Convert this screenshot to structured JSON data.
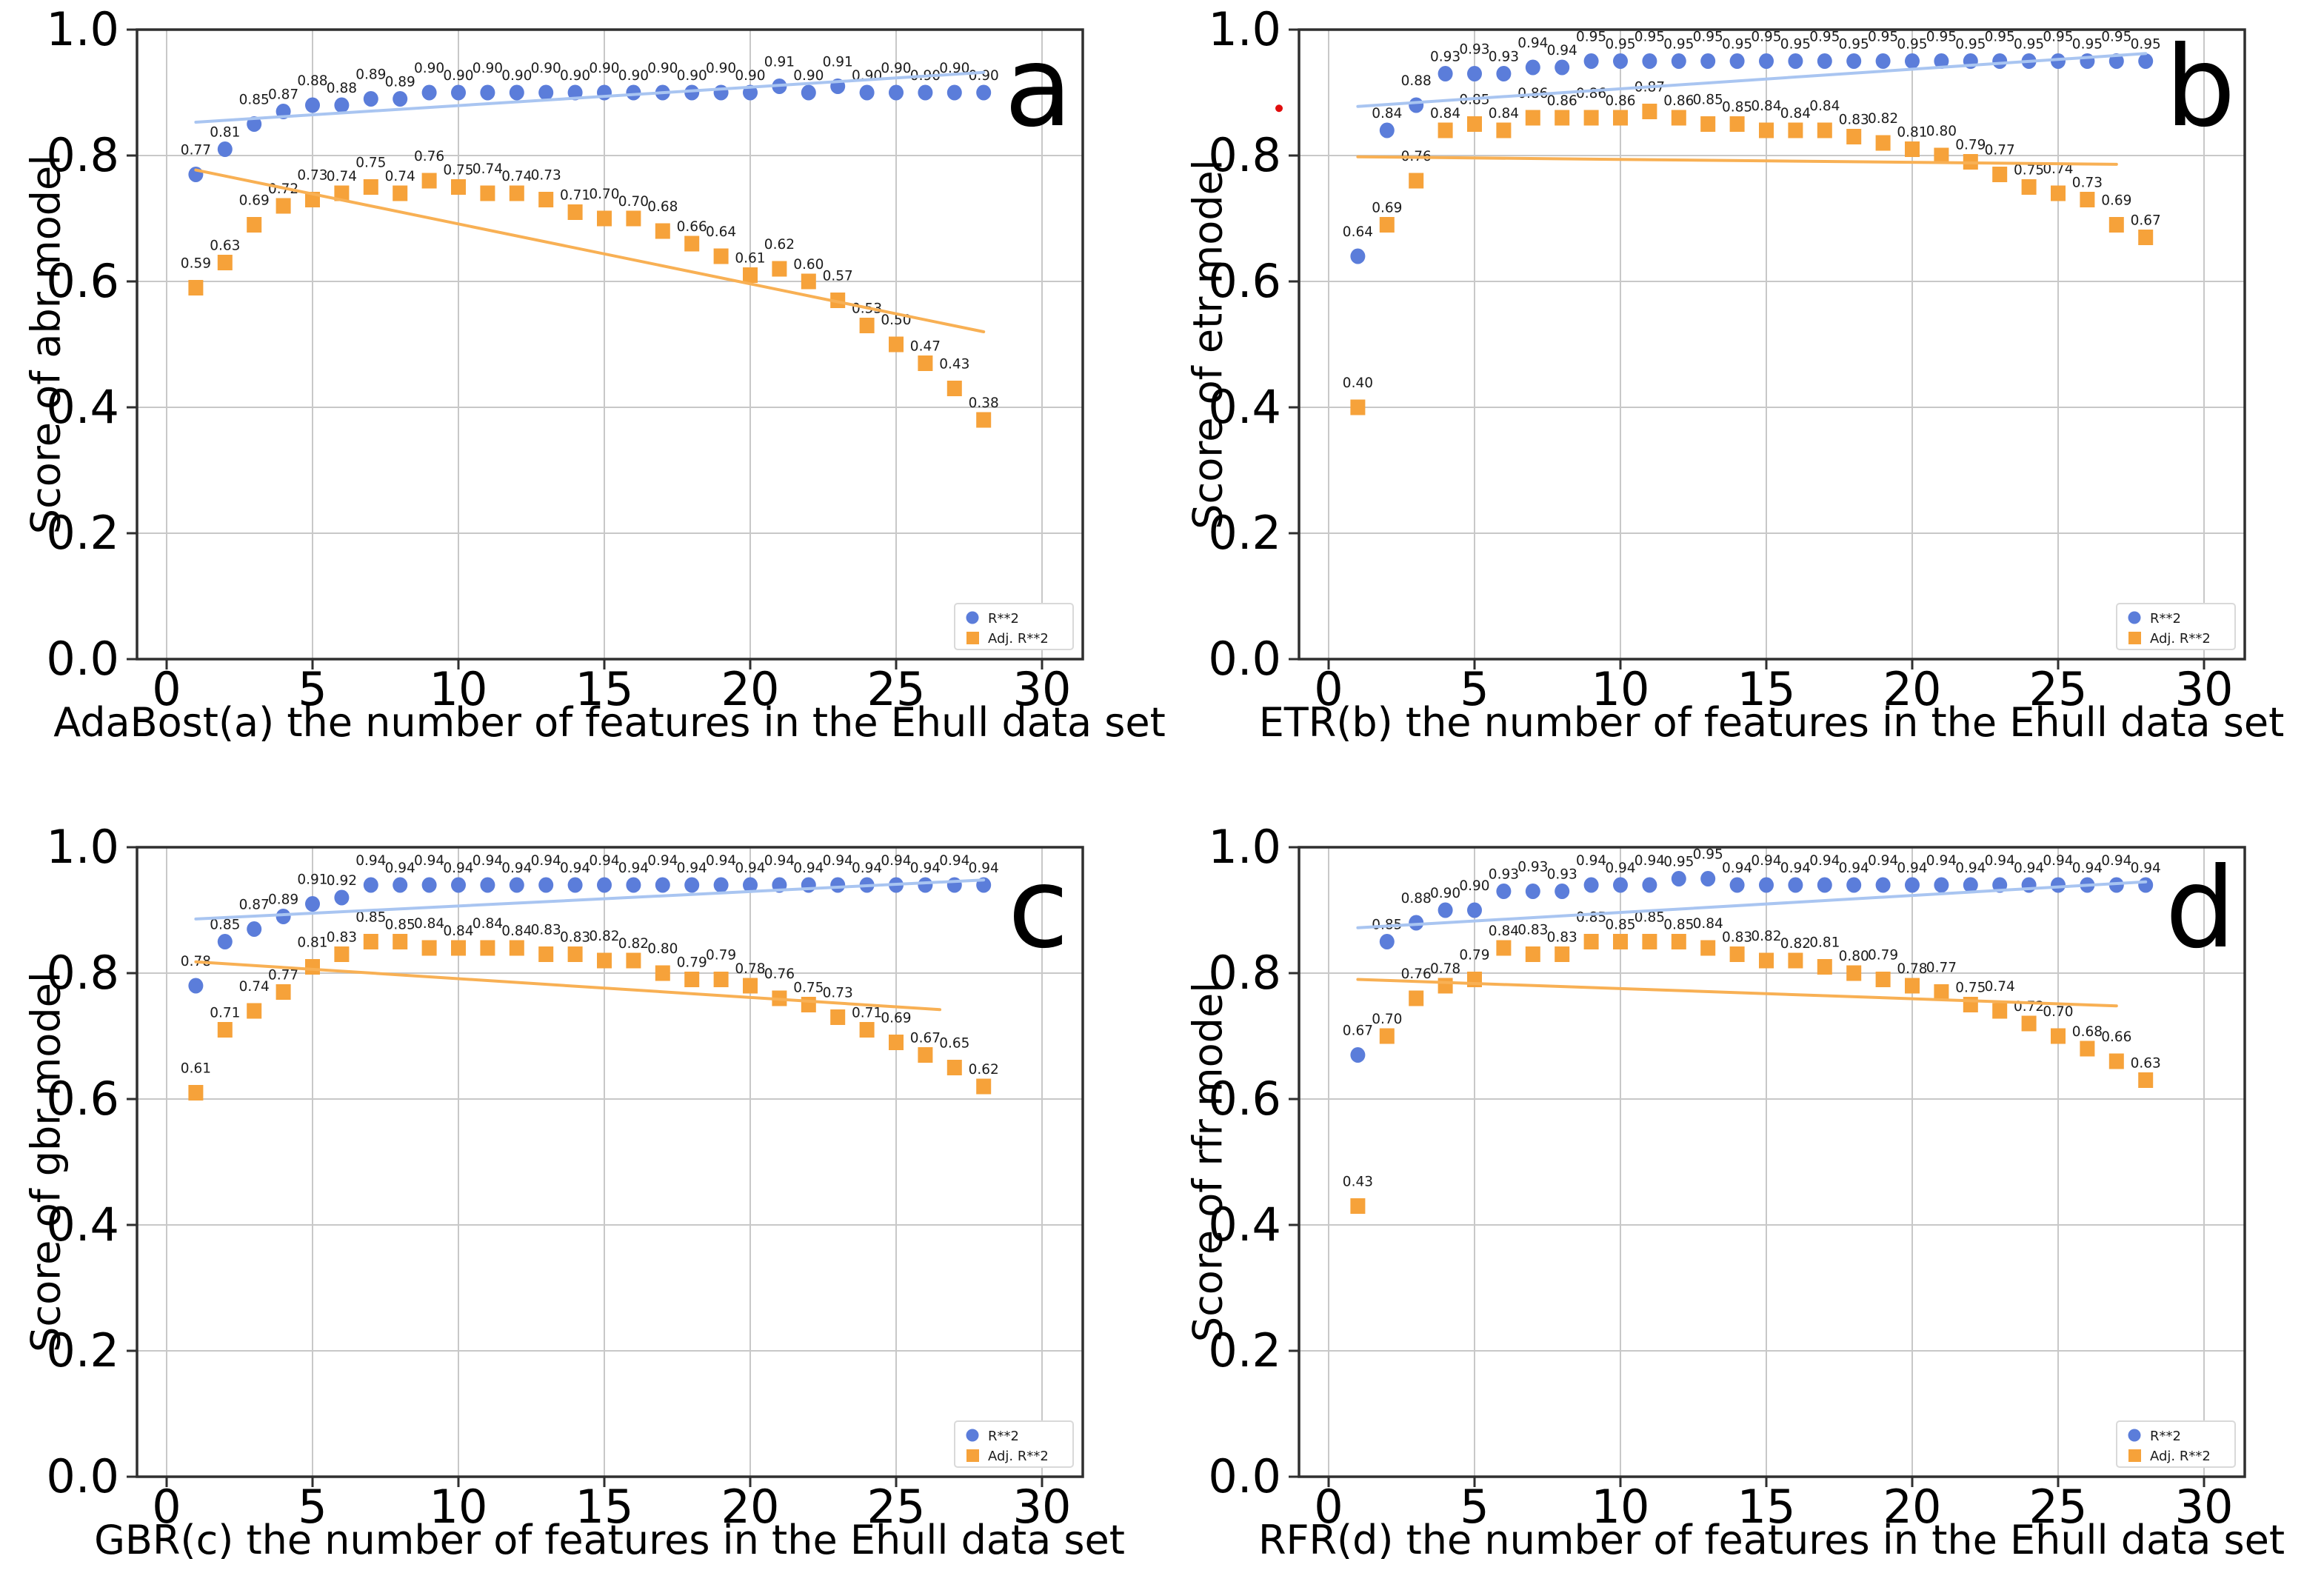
{
  "figure": {
    "x_ticks": [
      0,
      5,
      10,
      15,
      20,
      25,
      30
    ],
    "y_ticks": [
      0.0,
      0.2,
      0.4,
      0.6,
      0.8,
      1.0
    ],
    "legend": {
      "items": [
        {
          "label": "R**2",
          "marker": "circle"
        },
        {
          "label": "Adj. R**2",
          "marker": "square"
        }
      ]
    },
    "colors": {
      "r2_marker": "#5b7dda",
      "adj_r2_marker": "#f6a23a",
      "r2_trend": "#a9c5f1",
      "adj_r2_trend": "#f8b054",
      "grid": "#c8c8c8",
      "frame": "#2f2f2f",
      "value_label": "#1c1c1c",
      "tick_label": "#000000",
      "legend_border": "#d9d9d9",
      "stray_point": "#e00d0d"
    }
  },
  "x_values": [
    1,
    2,
    3,
    4,
    5,
    6,
    7,
    8,
    9,
    10,
    11,
    12,
    13,
    14,
    15,
    16,
    17,
    18,
    19,
    20,
    21,
    22,
    23,
    24,
    25,
    26,
    27,
    28
  ],
  "chart_data": [
    {
      "type": "scatter",
      "panel": "a",
      "model": "abr",
      "xlabel": "AdaBost(a) the number of features in the Ehull data set",
      "ylabel": "Score of abr model",
      "xlim": [
        0,
        30
      ],
      "ylim": [
        0.0,
        1.0
      ],
      "grid": true,
      "legend_position": "lower right",
      "series": [
        {
          "name": "R**2",
          "values": [
            0.77,
            0.81,
            0.85,
            0.87,
            0.88,
            0.88,
            0.89,
            0.89,
            0.9,
            0.9,
            0.9,
            0.9,
            0.9,
            0.9,
            0.9,
            0.9,
            0.9,
            0.9,
            0.9,
            0.9,
            0.91,
            0.9,
            0.91,
            0.9,
            0.9,
            0.9,
            0.9,
            0.9
          ]
        },
        {
          "name": "Adj. R**2",
          "values": [
            0.59,
            0.63,
            0.69,
            0.72,
            0.73,
            0.74,
            0.75,
            0.74,
            0.76,
            0.75,
            0.74,
            0.74,
            0.73,
            0.71,
            0.7,
            0.7,
            0.68,
            0.66,
            0.64,
            0.61,
            0.62,
            0.6,
            0.57,
            0.53,
            0.5,
            0.47,
            0.43,
            0.38
          ]
        }
      ],
      "trend_lines": {
        "r2": {
          "x1": 1,
          "y1": 0.853,
          "x2": 28,
          "y2": 0.932
        },
        "adj_r2": {
          "x1": 1,
          "y1": 0.777,
          "x2": 28,
          "y2": 0.52
        }
      }
    },
    {
      "type": "scatter",
      "panel": "b",
      "model": "etr",
      "xlabel": "ETR(b) the number of features in the Ehull data set",
      "ylabel": "Score of etr model",
      "xlim": [
        0,
        30
      ],
      "ylim": [
        0.0,
        1.0
      ],
      "grid": true,
      "legend_position": "lower right",
      "series": [
        {
          "name": "R**2",
          "values": [
            0.64,
            0.84,
            0.88,
            0.93,
            0.93,
            0.93,
            0.94,
            0.94,
            0.95,
            0.95,
            0.95,
            0.95,
            0.95,
            0.95,
            0.95,
            0.95,
            0.95,
            0.95,
            0.95,
            0.95,
            0.95,
            0.95,
            0.95,
            0.95,
            0.95,
            0.95,
            0.95,
            0.95
          ]
        },
        {
          "name": "Adj. R**2",
          "values": [
            0.4,
            0.69,
            0.76,
            0.84,
            0.85,
            0.84,
            0.86,
            0.86,
            0.86,
            0.86,
            0.87,
            0.86,
            0.85,
            0.85,
            0.84,
            0.84,
            0.84,
            0.83,
            0.82,
            0.81,
            0.8,
            0.79,
            0.77,
            0.75,
            0.74,
            0.73,
            0.69,
            0.67
          ]
        }
      ],
      "trend_lines": {
        "r2": {
          "x1": 1,
          "y1": 0.878,
          "x2": 28,
          "y2": 0.962
        },
        "adj_r2": {
          "x1": 1,
          "y1": 0.798,
          "x2": 27,
          "y2": 0.786
        }
      },
      "stray_point": {
        "x": -1.7,
        "y": 0.875
      }
    },
    {
      "type": "scatter",
      "panel": "c",
      "model": "gbr",
      "xlabel": "GBR(c) the number of features in the Ehull data set",
      "ylabel": "Score of gbr model",
      "xlim": [
        0,
        30
      ],
      "ylim": [
        0.0,
        1.0
      ],
      "grid": true,
      "legend_position": "lower right",
      "series": [
        {
          "name": "R**2",
          "values": [
            0.78,
            0.85,
            0.87,
            0.89,
            0.91,
            0.92,
            0.94,
            0.94,
            0.94,
            0.94,
            0.94,
            0.94,
            0.94,
            0.94,
            0.94,
            0.94,
            0.94,
            0.94,
            0.94,
            0.94,
            0.94,
            0.94,
            0.94,
            0.94,
            0.94,
            0.94,
            0.94,
            0.94
          ]
        },
        {
          "name": "Adj. R**2",
          "values": [
            0.61,
            0.71,
            0.74,
            0.77,
            0.81,
            0.83,
            0.85,
            0.85,
            0.84,
            0.84,
            0.84,
            0.84,
            0.83,
            0.83,
            0.82,
            0.82,
            0.8,
            0.79,
            0.79,
            0.78,
            0.76,
            0.75,
            0.73,
            0.71,
            0.69,
            0.67,
            0.65,
            0.62
          ]
        }
      ],
      "trend_lines": {
        "r2": {
          "x1": 1,
          "y1": 0.886,
          "x2": 28,
          "y2": 0.948
        },
        "adj_r2": {
          "x1": 1,
          "y1": 0.818,
          "x2": 26.5,
          "y2": 0.742
        }
      }
    },
    {
      "type": "scatter",
      "panel": "d",
      "model": "rfr",
      "xlabel": "RFR(d) the number of features in the Ehull data set",
      "ylabel": "Score of rfr model",
      "xlim": [
        0,
        30
      ],
      "ylim": [
        0.0,
        1.0
      ],
      "grid": true,
      "legend_position": "lower right",
      "series": [
        {
          "name": "R**2",
          "values": [
            0.67,
            0.85,
            0.88,
            0.9,
            0.9,
            0.93,
            0.93,
            0.93,
            0.94,
            0.94,
            0.94,
            0.95,
            0.95,
            0.94,
            0.94,
            0.94,
            0.94,
            0.94,
            0.94,
            0.94,
            0.94,
            0.94,
            0.94,
            0.94,
            0.94,
            0.94,
            0.94,
            0.94
          ]
        },
        {
          "name": "Adj. R**2",
          "values": [
            0.43,
            0.7,
            0.76,
            0.78,
            0.79,
            0.84,
            0.83,
            0.83,
            0.85,
            0.85,
            0.85,
            0.85,
            0.84,
            0.83,
            0.82,
            0.82,
            0.81,
            0.8,
            0.79,
            0.78,
            0.77,
            0.75,
            0.74,
            0.72,
            0.7,
            0.68,
            0.66,
            0.63
          ]
        }
      ],
      "trend_lines": {
        "r2": {
          "x1": 1,
          "y1": 0.872,
          "x2": 28,
          "y2": 0.945
        },
        "adj_r2": {
          "x1": 1,
          "y1": 0.79,
          "x2": 27,
          "y2": 0.748
        }
      }
    }
  ]
}
